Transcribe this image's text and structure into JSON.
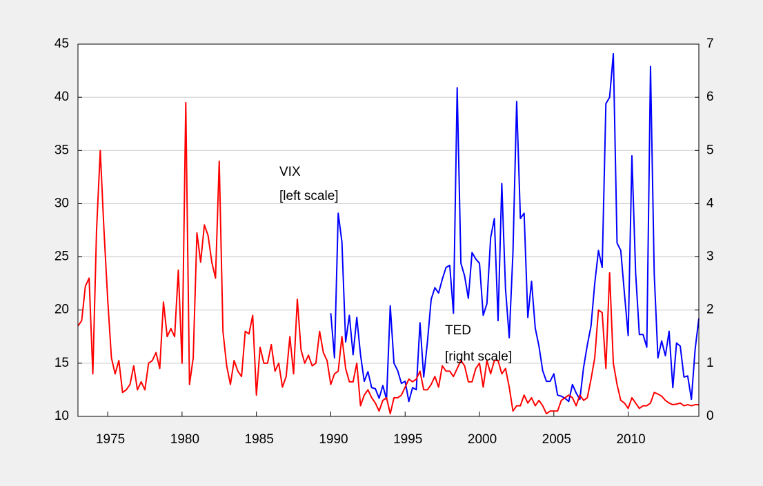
{
  "chart_data": {
    "type": "line",
    "x": [
      1973,
      1973.25,
      1973.5,
      1973.75,
      1974,
      1974.25,
      1974.5,
      1974.75,
      1975,
      1975.25,
      1975.5,
      1975.75,
      1976,
      1976.25,
      1976.5,
      1976.75,
      1977,
      1977.25,
      1977.5,
      1977.75,
      1978,
      1978.25,
      1978.5,
      1978.75,
      1979,
      1979.25,
      1979.5,
      1979.75,
      1980,
      1980.25,
      1980.5,
      1980.75,
      1981,
      1981.25,
      1981.5,
      1981.75,
      1982,
      1982.25,
      1982.5,
      1982.75,
      1983,
      1983.25,
      1983.5,
      1983.75,
      1984,
      1984.25,
      1984.5,
      1984.75,
      1985,
      1985.25,
      1985.5,
      1985.75,
      1986,
      1986.25,
      1986.5,
      1986.75,
      1987,
      1987.25,
      1987.5,
      1987.75,
      1988,
      1988.25,
      1988.5,
      1988.75,
      1989,
      1989.25,
      1989.5,
      1989.75,
      1990,
      1990.25,
      1990.5,
      1990.75,
      1991,
      1991.25,
      1991.5,
      1991.75,
      1992,
      1992.25,
      1992.5,
      1992.75,
      1993,
      1993.25,
      1993.5,
      1993.75,
      1994,
      1994.25,
      1994.5,
      1994.75,
      1995,
      1995.25,
      1995.5,
      1995.75,
      1996,
      1996.25,
      1996.5,
      1996.75,
      1997,
      1997.25,
      1997.5,
      1997.75,
      1998,
      1998.25,
      1998.5,
      1998.75,
      1999,
      1999.25,
      1999.5,
      1999.75,
      2000,
      2000.25,
      2000.5,
      2000.75,
      2001,
      2001.25,
      2001.5,
      2001.75,
      2002,
      2002.25,
      2002.5,
      2002.75,
      2003,
      2003.25,
      2003.5,
      2003.75,
      2004,
      2004.25,
      2004.5,
      2004.75,
      2005,
      2005.25,
      2005.5,
      2005.75,
      2006,
      2006.25,
      2006.5,
      2006.75,
      2007,
      2007.25,
      2007.5,
      2007.75,
      2008,
      2008.25,
      2008.5,
      2008.75,
      2009,
      2009.25,
      2009.5,
      2009.75,
      2010,
      2010.25,
      2010.5,
      2010.75,
      2011,
      2011.25,
      2011.5,
      2011.75,
      2012,
      2012.25,
      2012.5,
      2012.75,
      2013,
      2013.25,
      2013.5,
      2013.75,
      2014,
      2014.25,
      2014.5,
      2014.75
    ],
    "series": [
      {
        "name": "VIX",
        "note": "[left scale]",
        "color": "#0000ff",
        "axis": "y",
        "values": [
          null,
          null,
          null,
          null,
          null,
          null,
          null,
          null,
          null,
          null,
          null,
          null,
          null,
          null,
          null,
          null,
          null,
          null,
          null,
          null,
          null,
          null,
          null,
          null,
          null,
          null,
          null,
          null,
          null,
          null,
          null,
          null,
          null,
          null,
          null,
          null,
          null,
          null,
          null,
          null,
          null,
          null,
          null,
          null,
          null,
          null,
          null,
          null,
          null,
          null,
          null,
          null,
          null,
          null,
          null,
          null,
          null,
          null,
          null,
          null,
          null,
          null,
          null,
          null,
          null,
          null,
          null,
          null,
          19.7,
          15.5,
          29.1,
          26.4,
          17,
          19.5,
          15.8,
          19.3,
          15.8,
          13.3,
          14.2,
          12.7,
          12.6,
          11.7,
          12.9,
          11.6,
          20.4,
          15,
          14.3,
          13.1,
          13.3,
          11.4,
          12.7,
          12.5,
          18.8,
          13.7,
          17,
          21,
          22.1,
          21.6,
          22.9,
          24,
          24.2,
          19.7,
          40.9,
          24.4,
          23.2,
          21.1,
          25.4,
          24.8,
          24.4,
          19.5,
          20.6,
          26.8,
          28.6,
          19,
          31.9,
          22,
          17.4,
          25.4,
          39.6,
          28.6,
          29.1,
          19.3,
          22.7,
          18.3,
          16.6,
          14.3,
          13.3,
          13.3,
          14,
          12,
          11.9,
          11.7,
          11.4,
          13,
          12.2,
          11.6,
          14.6,
          16.7,
          18.5,
          22.5,
          25.6,
          24,
          39.4,
          40,
          44.1,
          26.3,
          25.6,
          21.5,
          17.6,
          34.5,
          23.5,
          17.7,
          17.7,
          16.5,
          42.9,
          23.4,
          15.5,
          17.1,
          15.7,
          18,
          12.7,
          16.9,
          16.6,
          13.7,
          13.8,
          11.6,
          16.3,
          19.2
        ]
      },
      {
        "name": "TED",
        "note": "[right scale]",
        "color": "#ff0000",
        "axis": "y2",
        "values": [
          1.7,
          1.8,
          2.45,
          2.6,
          0.8,
          3.5,
          5.0,
          3.5,
          2.2,
          1.1,
          0.8,
          1.05,
          0.45,
          0.5,
          0.6,
          0.95,
          0.5,
          0.65,
          0.5,
          1.0,
          1.05,
          1.2,
          0.9,
          2.15,
          1.5,
          1.65,
          1.5,
          2.75,
          1.0,
          5.9,
          0.6,
          1.1,
          3.45,
          2.9,
          3.6,
          3.4,
          2.9,
          2.6,
          4.8,
          1.6,
          0.95,
          0.6,
          1.05,
          0.85,
          0.75,
          1.6,
          1.55,
          1.9,
          0.4,
          1.3,
          1.0,
          1.0,
          1.35,
          0.85,
          1.0,
          0.55,
          0.75,
          1.5,
          0.8,
          2.2,
          1.25,
          1.0,
          1.15,
          0.95,
          1.0,
          1.6,
          1.2,
          1.05,
          0.6,
          0.8,
          0.85,
          1.5,
          0.9,
          0.65,
          0.65,
          1.0,
          0.2,
          0.4,
          0.5,
          0.35,
          0.25,
          0.1,
          0.3,
          0.35,
          0.05,
          0.35,
          0.35,
          0.4,
          0.55,
          0.7,
          0.65,
          0.7,
          0.85,
          0.5,
          0.5,
          0.6,
          0.75,
          0.55,
          0.95,
          0.85,
          0.85,
          0.75,
          0.9,
          1.05,
          0.95,
          0.65,
          0.65,
          0.9,
          1.0,
          0.55,
          1.05,
          0.8,
          1.05,
          1.05,
          0.8,
          0.9,
          0.55,
          0.1,
          0.2,
          0.2,
          0.4,
          0.25,
          0.35,
          0.2,
          0.3,
          0.2,
          0.05,
          0.1,
          0.1,
          0.1,
          0.3,
          0.35,
          0.4,
          0.35,
          0.2,
          0.4,
          0.3,
          0.35,
          0.7,
          1.1,
          2.0,
          1.95,
          0.9,
          2.7,
          1.0,
          0.6,
          0.3,
          0.25,
          0.15,
          0.35,
          0.25,
          0.15,
          0.2,
          0.2,
          0.25,
          0.45,
          0.42,
          0.38,
          0.3,
          0.25,
          0.22,
          0.23,
          0.25,
          0.2,
          0.22,
          0.2,
          0.22,
          0.22
        ]
      }
    ],
    "xlim": [
      1973,
      2014.75
    ],
    "xticks": [
      1975,
      1980,
      1985,
      1990,
      1995,
      2000,
      2005,
      2010
    ],
    "ylim": [
      10,
      45
    ],
    "yticks": [
      10,
      15,
      20,
      25,
      30,
      35,
      40,
      45
    ],
    "y2lim": [
      0,
      7
    ],
    "y2ticks": [
      0,
      1,
      2,
      3,
      4,
      5,
      6,
      7
    ],
    "grid": true
  }
}
